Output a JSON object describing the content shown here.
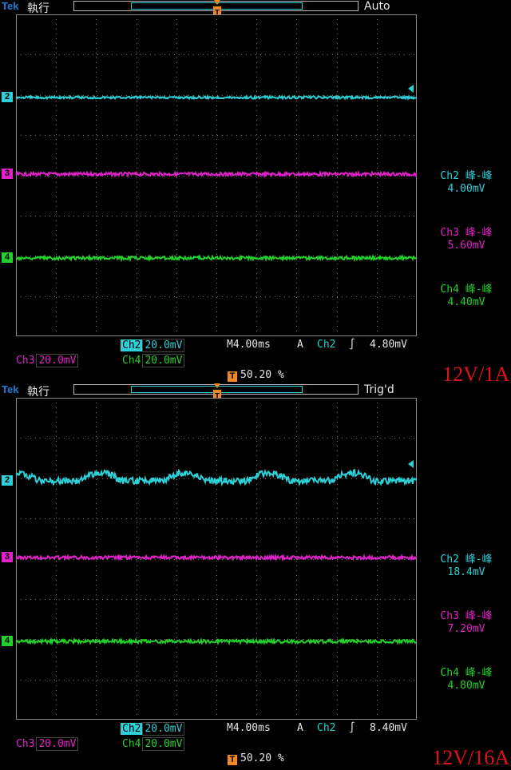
{
  "colors": {
    "ch2": "#2bd0d8",
    "ch3": "#e020c8",
    "ch4": "#22d22a",
    "trigger": "#f08a1e",
    "brand": "#1d7fd6",
    "label_red": "#e0101a"
  },
  "panels": [
    {
      "brand": "Tek",
      "acq_state": "執行",
      "trigger_state": "Auto",
      "channels": [
        {
          "num": "2",
          "color": "#2bd0d8"
        },
        {
          "num": "3",
          "color": "#e020c8"
        },
        {
          "num": "4",
          "color": "#22d22a"
        }
      ],
      "measurements": [
        {
          "label": "Ch2 峰-峰",
          "value": "4.00mV",
          "color": "#2bd0d8"
        },
        {
          "label": "Ch3 峰-峰",
          "value": "5.60mV",
          "color": "#e020c8"
        },
        {
          "label": "Ch4 峰-峰",
          "value": "4.40mV",
          "color": "#22d22a"
        }
      ],
      "status": {
        "ch2_tag": "Ch2",
        "ch2_scale": "20.0mV",
        "ch3_tag": "Ch3",
        "ch3_scale": "20.0mV",
        "ch4_tag": "Ch4",
        "ch4_scale": "20.0mV",
        "timebase": "M4.00ms",
        "trig_mode": "A",
        "trig_source": "Ch2",
        "trig_slope": "∫",
        "trig_level": "4.80mV",
        "trig_pos": "50.20 %",
        "bw_symbol": "∿Bₖ"
      },
      "load_label": "12V/1A",
      "waveform": "flat"
    },
    {
      "brand": "Tek",
      "acq_state": "執行",
      "trigger_state": "Trig'd",
      "channels": [
        {
          "num": "2",
          "color": "#2bd0d8"
        },
        {
          "num": "3",
          "color": "#e020c8"
        },
        {
          "num": "4",
          "color": "#22d22a"
        }
      ],
      "measurements": [
        {
          "label": "Ch2 峰-峰",
          "value": "18.4mV",
          "color": "#2bd0d8"
        },
        {
          "label": "Ch3 峰-峰",
          "value": "7.20mV",
          "color": "#e020c8"
        },
        {
          "label": "Ch4 峰-峰",
          "value": "4.80mV",
          "color": "#22d22a"
        }
      ],
      "status": {
        "ch2_tag": "Ch2",
        "ch2_scale": "20.0mV",
        "ch3_tag": "Ch3",
        "ch3_scale": "20.0mV",
        "ch4_tag": "Ch4",
        "ch4_scale": "20.0mV",
        "timebase": "M4.00ms",
        "trig_mode": "A",
        "trig_source": "Ch2",
        "trig_slope": "∫",
        "trig_level": "8.40mV",
        "trig_pos": "50.20 %",
        "bw_symbol": "∿Bₖ"
      },
      "load_label": "12V/16A",
      "waveform": "ripple"
    }
  ]
}
